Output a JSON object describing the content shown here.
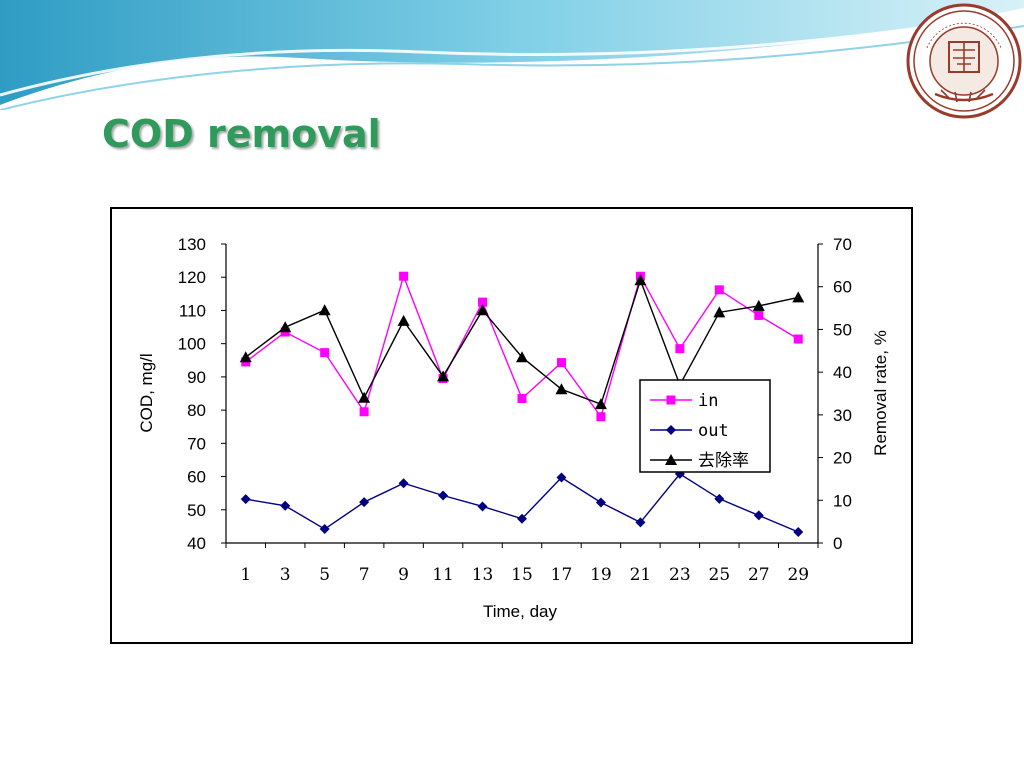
{
  "slide": {
    "title": "COD removal",
    "seal_text": "TIANJIN UNIVERSITY (PEIYANG UNIVERSITY) 1895 天津大学"
  },
  "colors": {
    "title": "#2e9a5c",
    "wave_dark": "#3aa6c8",
    "wave_light": "#bfe6f2",
    "seal": "#9b3a2a",
    "in": "#ff00ff",
    "out": "#000080",
    "removal": "#000000"
  },
  "chart_data": {
    "type": "line",
    "xlabel": "Time, day",
    "ylabel": "COD, mg/l",
    "y2label": "Removal rate, %",
    "x": [
      1,
      3,
      5,
      7,
      9,
      11,
      13,
      15,
      17,
      19,
      21,
      23,
      25,
      27,
      29
    ],
    "x_ticks": [
      "1",
      "3",
      "5",
      "7",
      "9",
      "11",
      "13",
      "15",
      "17",
      "19",
      "21",
      "23",
      "25",
      "27",
      "29"
    ],
    "ylim": [
      40,
      130
    ],
    "y_ticks": [
      "130",
      "120",
      "110",
      "100",
      "90",
      "80",
      "70",
      "60",
      "50",
      "40"
    ],
    "y2lim": [
      0,
      70
    ],
    "y2_ticks": [
      "70",
      "60",
      "50",
      "40",
      "30",
      "20",
      "10",
      "0"
    ],
    "legend_position": "center-right",
    "series": [
      {
        "name": "in",
        "axis": "left",
        "marker": "square",
        "color": "#ff00ff",
        "values": [
          94.5,
          103.5,
          97.3,
          79.5,
          120.3,
          89.5,
          112.5,
          83.5,
          94.3,
          78,
          120.3,
          98.5,
          116.2,
          108.5,
          101.4
        ]
      },
      {
        "name": "out",
        "axis": "left",
        "marker": "diamond",
        "color": "#000080",
        "values": [
          53.2,
          51.2,
          44.2,
          52.3,
          58,
          54.3,
          51,
          47.3,
          59.7,
          52.2,
          46.2,
          60.8,
          53.3,
          48.3,
          43.3
        ]
      },
      {
        "name": "去除率",
        "axis": "right",
        "marker": "triangle",
        "color": "#000000",
        "values": [
          43.5,
          50.5,
          54.5,
          34,
          52,
          39,
          54.5,
          43.5,
          36,
          32.5,
          61.5,
          37,
          54,
          55.5,
          57.5
        ]
      }
    ]
  }
}
